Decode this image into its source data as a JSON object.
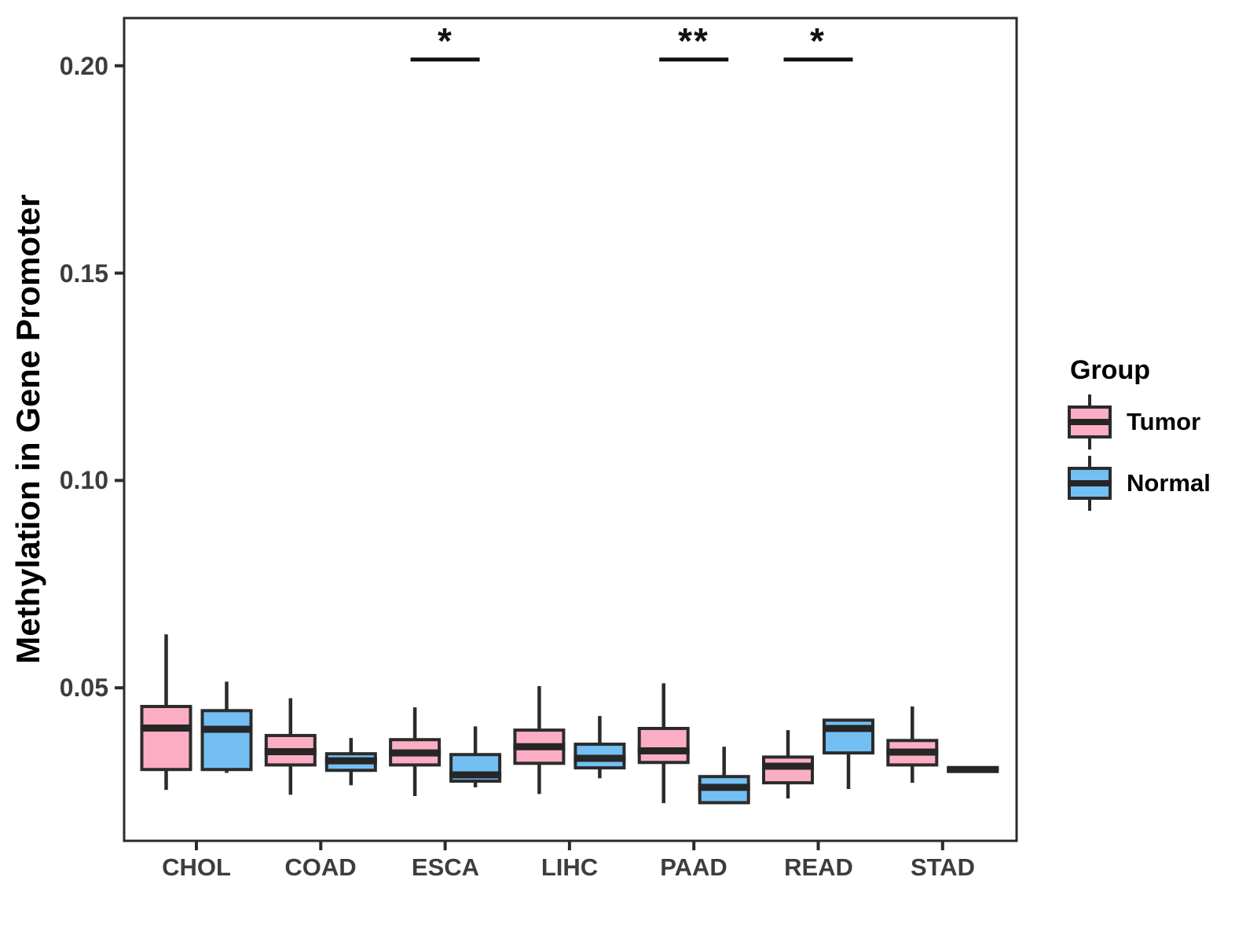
{
  "chart_data": {
    "type": "boxplot",
    "title": "",
    "xlabel": "",
    "ylabel": "Methylation in Gene Promoter",
    "categories": [
      "CHOL",
      "COAD",
      "ESCA",
      "LIHC",
      "PAAD",
      "READ",
      "STAD"
    ],
    "y_ticks": [
      "0.05",
      "0.10",
      "0.15",
      "0.20"
    ],
    "y_tick_values": [
      0.05,
      0.1,
      0.15,
      0.2
    ],
    "ylim": [
      0.0131,
      0.2115
    ],
    "grid": "off",
    "legend_position": "right",
    "legend": {
      "title": "Group"
    },
    "groups": [
      {
        "name": "Tumor",
        "fill": "#FBAEC3"
      },
      {
        "name": "Normal",
        "fill": "#73BFF4"
      }
    ],
    "series": [
      {
        "name": "Tumor",
        "fill": "#FBAEC3",
        "stats_format": [
          "min",
          "q1",
          "median",
          "q3",
          "max"
        ],
        "stats": [
          [
            0.0254,
            0.0303,
            0.0403,
            0.0455,
            0.0629
          ],
          [
            0.0242,
            0.0314,
            0.0346,
            0.0385,
            0.0475
          ],
          [
            0.0239,
            0.0314,
            0.0343,
            0.0375,
            0.0453
          ],
          [
            0.0244,
            0.0318,
            0.0358,
            0.0398,
            0.0504
          ],
          [
            0.0222,
            0.032,
            0.0348,
            0.0402,
            0.0511
          ],
          [
            0.0233,
            0.0271,
            0.0311,
            0.0333,
            0.0398
          ],
          [
            0.0271,
            0.0314,
            0.0345,
            0.0373,
            0.0455
          ]
        ]
      },
      {
        "name": "Normal",
        "fill": "#73BFF4",
        "stats_format": [
          "min",
          "q1",
          "median",
          "q3",
          "max"
        ],
        "stats": [
          [
            0.0295,
            0.0303,
            0.04,
            0.0445,
            0.0515
          ],
          [
            0.0265,
            0.0301,
            0.0324,
            0.0341,
            0.0379
          ],
          [
            0.026,
            0.0275,
            0.029,
            0.0339,
            0.0407
          ],
          [
            0.0282,
            0.0307,
            0.033,
            0.0364,
            0.0432
          ],
          [
            0.0219,
            0.0223,
            0.026,
            0.0286,
            0.0358
          ],
          [
            0.0256,
            0.0343,
            0.0402,
            0.0422,
            0.0425
          ],
          [
            0.0296,
            0.0301,
            0.0303,
            0.0306,
            0.031
          ]
        ]
      }
    ],
    "significance": [
      {
        "category": "ESCA",
        "label": "*"
      },
      {
        "category": "PAAD",
        "label": "**"
      },
      {
        "category": "READ",
        "label": "*"
      }
    ],
    "sig_bar_value": 0.2015,
    "colors": {
      "box_border": "#2b2b2b",
      "median_band": "#262626",
      "axis_line": "#2b2b2b",
      "tick_label": "#3d3d3d",
      "axis_title": "#000000",
      "significance": "#111111",
      "background": "#ffffff"
    }
  }
}
